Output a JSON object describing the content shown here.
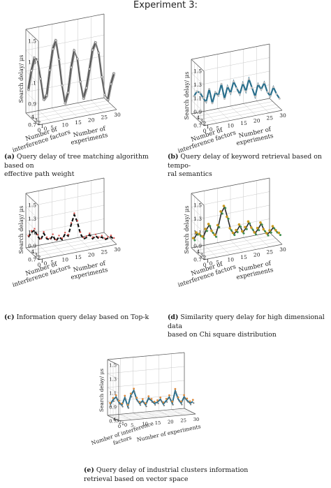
{
  "page_title": "Experiment 3:",
  "chart_data": [
    {
      "id": "a",
      "type": "line",
      "style": "bundle",
      "color": "#3a3a3a",
      "marker_color": "#cccccc",
      "caption_label": "(a)",
      "caption_lines": [
        "Query delay of tree matching algorithm based on",
        "effective path weight"
      ],
      "zlabel": "Search delay/ μs",
      "ylabel_lines": [
        "Number of",
        "interference factors"
      ],
      "xlabel_lines": [
        "Number of",
        "experiments"
      ],
      "z_ticks": [
        "0.7",
        "0.9",
        "1.1",
        "1.3",
        "1.5"
      ],
      "y_ticks": [
        "0",
        "1",
        "2",
        "3",
        "4"
      ],
      "x_ticks": [
        "0",
        "5",
        "10",
        "15",
        "20",
        "25",
        "30"
      ],
      "zlim": [
        0.7,
        1.5
      ],
      "x": [
        1,
        2,
        3,
        4,
        5,
        6,
        7,
        8,
        9,
        10,
        11,
        12,
        13,
        14,
        15,
        16,
        17,
        18,
        19,
        20,
        21,
        22,
        23,
        24,
        25,
        26,
        27,
        28,
        29
      ],
      "y": [
        4,
        3.86,
        3.71,
        3.57,
        3.43,
        3.29,
        3.14,
        3,
        2.86,
        2.71,
        2.57,
        2.43,
        2.29,
        2.14,
        2,
        1.86,
        1.71,
        1.57,
        1.43,
        1.29,
        1.14,
        1,
        0.86,
        0.71,
        0.57,
        0.43,
        0.29,
        0.14,
        0
      ],
      "z": [
        0.92,
        1.1,
        1.22,
        1.2,
        1.02,
        0.82,
        0.86,
        1.1,
        1.3,
        1.38,
        1.2,
        0.95,
        0.78,
        0.88,
        1.12,
        1.28,
        1.2,
        0.98,
        0.82,
        0.92,
        1.1,
        1.28,
        1.35,
        1.25,
        1.02,
        0.85,
        0.8,
        0.95,
        1.05
      ]
    },
    {
      "id": "b",
      "type": "line",
      "style": "markers",
      "color": "#2a6f8c",
      "marker_color": "#bcbcbc",
      "caption_label": "(b)",
      "caption_lines": [
        "Query delay of keyword retrieval based on tempo-",
        "ral semantics"
      ],
      "zlabel": "Search delay/ μs",
      "ylabel_lines": [
        "Number of",
        "interference factors"
      ],
      "xlabel_lines": [
        "Number of",
        "experiments"
      ],
      "z_ticks": [
        "0.7",
        "0.9",
        "1.1",
        "1.3",
        "1.5"
      ],
      "y_ticks": [
        "0",
        "1",
        "2",
        "3",
        "4"
      ],
      "x_ticks": [
        "0",
        "5",
        "10",
        "15",
        "20",
        "25",
        "30"
      ],
      "zlim": [
        0.7,
        1.5
      ],
      "x": [
        1,
        2,
        3,
        4,
        5,
        6,
        7,
        8,
        9,
        10,
        11,
        12,
        13,
        14,
        15,
        16,
        17,
        18,
        19,
        20,
        21,
        22,
        23,
        24,
        25,
        26,
        27,
        28,
        29
      ],
      "y": [
        4,
        3.86,
        3.71,
        3.57,
        3.43,
        3.29,
        3.14,
        3,
        2.86,
        2.71,
        2.57,
        2.43,
        2.29,
        2.14,
        2,
        1.86,
        1.71,
        1.57,
        1.43,
        1.29,
        1.14,
        1,
        0.86,
        0.71,
        0.57,
        0.43,
        0.29,
        0.14,
        0
      ],
      "z": [
        0.95,
        1.02,
        1.0,
        0.92,
        0.86,
        1.05,
        0.84,
        1.0,
        0.95,
        1.12,
        0.9,
        1.08,
        0.98,
        1.15,
        1.05,
        0.96,
        1.12,
        1.0,
        1.18,
        1.05,
        0.92,
        1.1,
        1.02,
        1.12,
        0.98,
        0.92,
        1.05,
        0.95,
        0.88
      ]
    },
    {
      "id": "c",
      "type": "line",
      "style": "dashed",
      "color": "#111111",
      "marker_color": "#d9534f",
      "caption_label": "(c)",
      "caption_lines": [
        "Information query delay based on Top-k"
      ],
      "zlabel": "Search delay/ μs",
      "ylabel_lines": [
        "Number of",
        "interference factors"
      ],
      "xlabel_lines": [
        "Number of",
        "experiments"
      ],
      "z_ticks": [
        "0.7",
        "0.9",
        "1.1",
        "1.3",
        "1.5"
      ],
      "y_ticks": [
        "0",
        "1",
        "2",
        "3",
        "4"
      ],
      "x_ticks": [
        "0",
        "5",
        "10",
        "15",
        "20",
        "25",
        "30"
      ],
      "zlim": [
        0.7,
        1.5
      ],
      "x": [
        1,
        2,
        3,
        4,
        5,
        6,
        7,
        8,
        9,
        10,
        11,
        12,
        13,
        14,
        15,
        16,
        17,
        18,
        19,
        20,
        21,
        22,
        23,
        24,
        25,
        26,
        27,
        28,
        29
      ],
      "y": [
        4,
        3.86,
        3.71,
        3.57,
        3.43,
        3.29,
        3.14,
        3,
        2.86,
        2.71,
        2.57,
        2.43,
        2.29,
        2.14,
        2,
        1.86,
        1.71,
        1.57,
        1.43,
        1.29,
        1.14,
        1,
        0.86,
        0.71,
        0.57,
        0.43,
        0.29,
        0.14,
        0
      ],
      "z": [
        0.85,
        0.92,
        0.95,
        0.86,
        0.8,
        0.9,
        0.82,
        0.8,
        0.86,
        0.78,
        0.84,
        0.8,
        0.88,
        0.85,
        1.02,
        1.16,
        1.05,
        0.88,
        0.8,
        0.82,
        0.86,
        0.8,
        0.84,
        0.8,
        0.82,
        0.78,
        0.8,
        0.82,
        0.78
      ]
    },
    {
      "id": "d",
      "type": "line",
      "style": "multicolor",
      "color": "#2a2a2a",
      "marker_color": "#c89a1e",
      "marker_color_2": "#3f8f4f",
      "caption_label": "(d)",
      "caption_lines": [
        "Similarity query delay for high dimensional data",
        "based on Chi square distribution"
      ],
      "zlabel": "Search delay/ μs",
      "ylabel_lines": [
        "Number of",
        "interference factors"
      ],
      "xlabel_lines": [
        "Number of",
        "experiments"
      ],
      "z_ticks": [
        "0.7",
        "0.9",
        "1.1",
        "1.3",
        "1.5"
      ],
      "y_ticks": [
        "0",
        "1",
        "2",
        "3",
        "4"
      ],
      "x_ticks": [
        "0",
        "5",
        "10",
        "15",
        "20",
        "25",
        "30"
      ],
      "zlim": [
        0.7,
        1.5
      ],
      "x": [
        1,
        2,
        3,
        4,
        5,
        6,
        7,
        8,
        9,
        10,
        11,
        12,
        13,
        14,
        15,
        16,
        17,
        18,
        19,
        20,
        21,
        22,
        23,
        24,
        25,
        26,
        27,
        28,
        29
      ],
      "y": [
        4,
        3.86,
        3.71,
        3.57,
        3.43,
        3.29,
        3.14,
        3,
        2.86,
        2.71,
        2.57,
        2.43,
        2.29,
        2.14,
        2,
        1.86,
        1.71,
        1.57,
        1.43,
        1.29,
        1.14,
        1,
        0.86,
        0.71,
        0.57,
        0.43,
        0.29,
        0.14,
        0
      ],
      "z": [
        0.82,
        0.9,
        0.88,
        0.84,
        0.95,
        1.02,
        0.92,
        0.86,
        1.0,
        1.2,
        1.28,
        1.12,
        0.95,
        0.88,
        0.92,
        1.0,
        0.9,
        0.96,
        1.04,
        0.95,
        0.88,
        0.94,
        1.02,
        0.92,
        0.86,
        0.9,
        0.96,
        0.9,
        0.86
      ]
    },
    {
      "id": "e",
      "type": "line",
      "style": "mixed",
      "color": "#2a6f8c",
      "marker_color": "#e08a3c",
      "marker_color_2": "#777777",
      "caption_label": "(e)",
      "caption_lines": [
        "Query delay of industrial clusters information",
        "retrieval based on vector space"
      ],
      "zlabel": "Search delay/ μs",
      "ylabel_lines": [
        "Number of interference",
        "factors"
      ],
      "xlabel_lines": [
        "Number of experiments"
      ],
      "z_ticks": [
        "0.7",
        "0.9",
        "1.1",
        "1.3",
        "1.5"
      ],
      "y_ticks": [
        "0",
        "1",
        "2",
        "3",
        "4"
      ],
      "x_ticks": [
        "0",
        "5",
        "10",
        "15",
        "20",
        "25",
        "30"
      ],
      "zlim": [
        0.7,
        1.5
      ],
      "x": [
        1,
        2,
        3,
        4,
        5,
        6,
        7,
        8,
        9,
        10,
        11,
        12,
        13,
        14,
        15,
        16,
        17,
        18,
        19,
        20,
        21,
        22,
        23,
        24,
        25,
        26,
        27,
        28,
        29
      ],
      "y": [
        4,
        3.86,
        3.71,
        3.57,
        3.43,
        3.29,
        3.14,
        3,
        2.86,
        2.71,
        2.57,
        2.43,
        2.29,
        2.14,
        2,
        1.86,
        1.71,
        1.57,
        1.43,
        1.29,
        1.14,
        1,
        0.86,
        0.71,
        0.57,
        0.43,
        0.29,
        0.14,
        0
      ],
      "z": [
        0.85,
        0.92,
        0.96,
        0.88,
        0.84,
        0.95,
        0.82,
        0.98,
        1.05,
        0.92,
        0.86,
        0.9,
        0.84,
        0.94,
        0.9,
        0.86,
        0.88,
        0.92,
        0.85,
        0.9,
        0.95,
        0.86,
        1.04,
        0.92,
        0.86,
        0.95,
        0.9,
        0.86,
        0.88
      ]
    }
  ]
}
